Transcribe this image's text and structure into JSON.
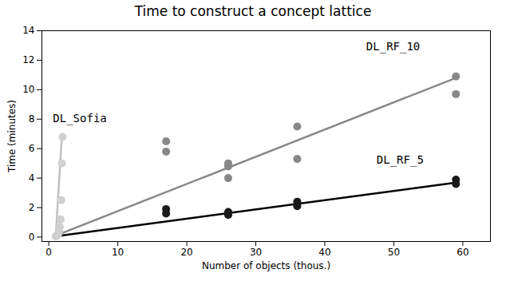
{
  "chart_data": {
    "type": "scatter",
    "title": "Time to construct a concept lattice",
    "xlabel": "Number of objects (thous.)",
    "ylabel": "Time (minutes)",
    "xlim": [
      -1,
      64
    ],
    "ylim": [
      -0.3,
      14
    ],
    "xticks": [
      0,
      10,
      20,
      30,
      40,
      50,
      60
    ],
    "yticks": [
      0,
      2,
      4,
      6,
      8,
      10,
      12,
      14
    ],
    "grid": false,
    "series": [
      {
        "name": "DL_Sofia",
        "color": "#d0d0d0",
        "x": [
          1.0,
          1.1,
          1.2,
          1.3,
          1.4,
          1.5,
          1.6,
          1.7,
          1.8,
          1.9,
          2.0
        ],
        "values": [
          0.05,
          0.08,
          0.1,
          0.15,
          0.25,
          0.4,
          0.7,
          1.2,
          2.5,
          5.0,
          6.8
        ],
        "fit": {
          "color": "#c0c0c0",
          "x": [
            1.0,
            1.9
          ],
          "values": [
            0.05,
            6.9
          ]
        },
        "annotation": {
          "x": 0.6,
          "y": 7.8
        }
      },
      {
        "name": "DL_RF_10",
        "color": "#888888",
        "x": [
          17,
          17,
          26,
          26,
          26,
          36,
          36,
          59,
          59
        ],
        "values": [
          5.8,
          6.5,
          4.0,
          4.8,
          5.0,
          5.3,
          7.5,
          10.9,
          9.7
        ],
        "fit": {
          "color": "#888888",
          "x": [
            1.0,
            59
          ],
          "values": [
            0.1,
            10.8
          ]
        },
        "annotation": {
          "x": 46.0,
          "y": 12.7
        }
      },
      {
        "name": "DL_RF_5",
        "color": "#1a1a1a",
        "x": [
          17,
          17,
          26,
          26,
          36,
          36,
          59,
          59
        ],
        "values": [
          1.6,
          1.9,
          1.5,
          1.7,
          2.1,
          2.4,
          3.6,
          3.9
        ],
        "fit": {
          "color": "#000000",
          "x": [
            1.0,
            59
          ],
          "values": [
            0.05,
            3.7
          ]
        },
        "annotation": {
          "x": 47.5,
          "y": 5.0
        }
      }
    ]
  }
}
